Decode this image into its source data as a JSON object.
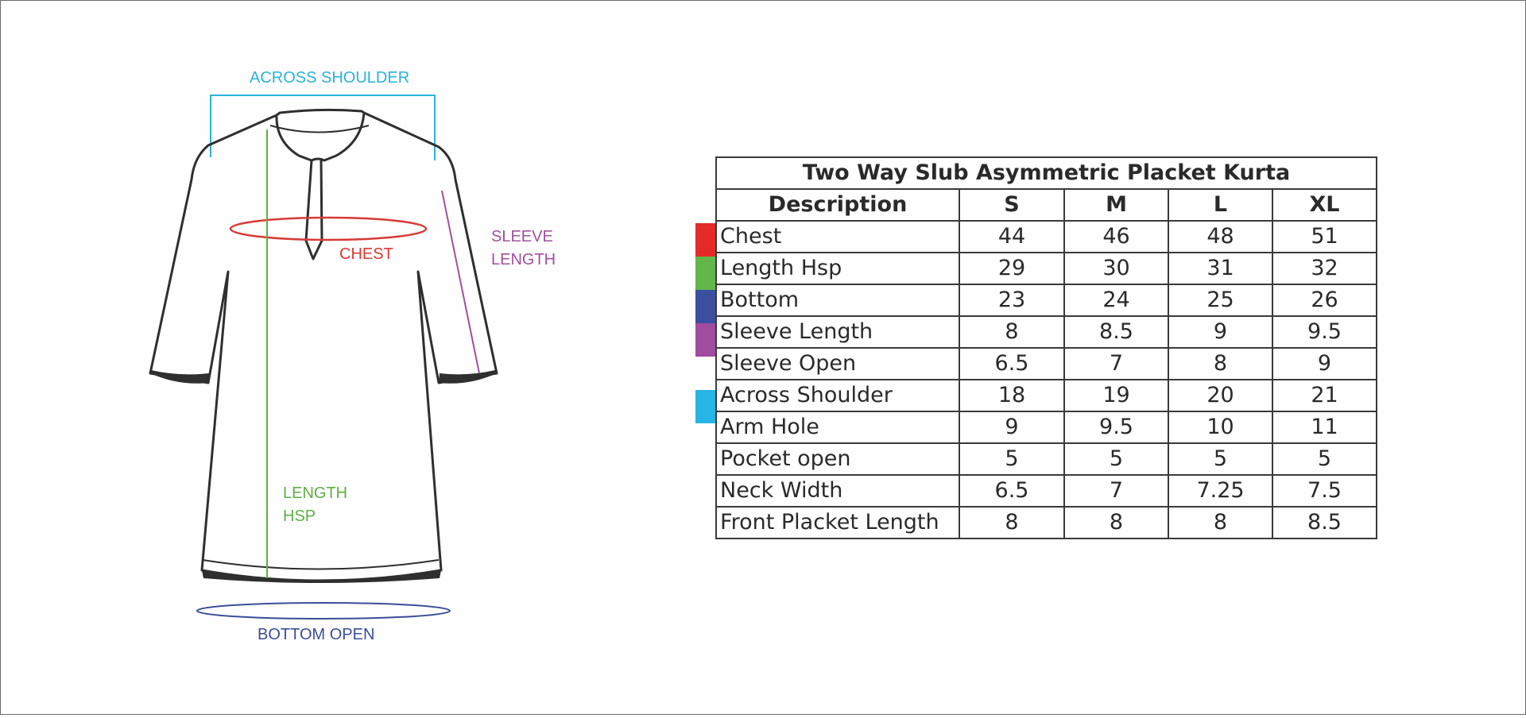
{
  "diagram": {
    "labels": {
      "across_shoulder": "ACROSS SHOULDER",
      "chest": "CHEST",
      "sleeve_length": [
        "SLEEVE",
        "LENGTH"
      ],
      "length_hsp": [
        "LENGTH",
        "HSP"
      ],
      "bottom_open": "BOTTOM OPEN"
    },
    "colors": {
      "across_shoulder": "#2ab3d9",
      "chest": "#d83a35",
      "sleeve_length": "#a0509e",
      "length_hsp": "#5fae45",
      "bottom_open": "#3a4d99",
      "garment_outline": "#2f2f2f"
    }
  },
  "table": {
    "title": "Two Way Slub Asymmetric Placket Kurta",
    "headers": [
      "Description",
      "S",
      "M",
      "L",
      "XL"
    ],
    "rows": [
      {
        "label": "Chest",
        "values": [
          "44",
          "46",
          "48",
          "51"
        ],
        "marker": "#e52a2a"
      },
      {
        "label": "Length Hsp",
        "values": [
          "29",
          "30",
          "31",
          "32"
        ],
        "marker": "#62b64a"
      },
      {
        "label": "Bottom",
        "values": [
          "23",
          "24",
          "25",
          "26"
        ],
        "marker": "#3b4fa0"
      },
      {
        "label": "Sleeve Length",
        "values": [
          "8",
          "8.5",
          "9",
          "9.5"
        ],
        "marker": "#a14d9f"
      },
      {
        "label": "Sleeve Open",
        "values": [
          "6.5",
          "7",
          "8",
          "9"
        ],
        "marker": null
      },
      {
        "label": "Across Shoulder",
        "values": [
          "18",
          "19",
          "20",
          "21"
        ],
        "marker": "#27b5e6"
      },
      {
        "label": "Arm Hole",
        "values": [
          "9",
          "9.5",
          "10",
          "11"
        ],
        "marker": null
      },
      {
        "label": "Pocket open",
        "values": [
          "5",
          "5",
          "5",
          "5"
        ],
        "marker": null
      },
      {
        "label": "Neck Width",
        "values": [
          "6.5",
          "7",
          "7.25",
          "7.5"
        ],
        "marker": null
      },
      {
        "label": "Front Placket Length",
        "values": [
          "8",
          "8",
          "8",
          "8.5"
        ],
        "marker": null
      }
    ]
  }
}
